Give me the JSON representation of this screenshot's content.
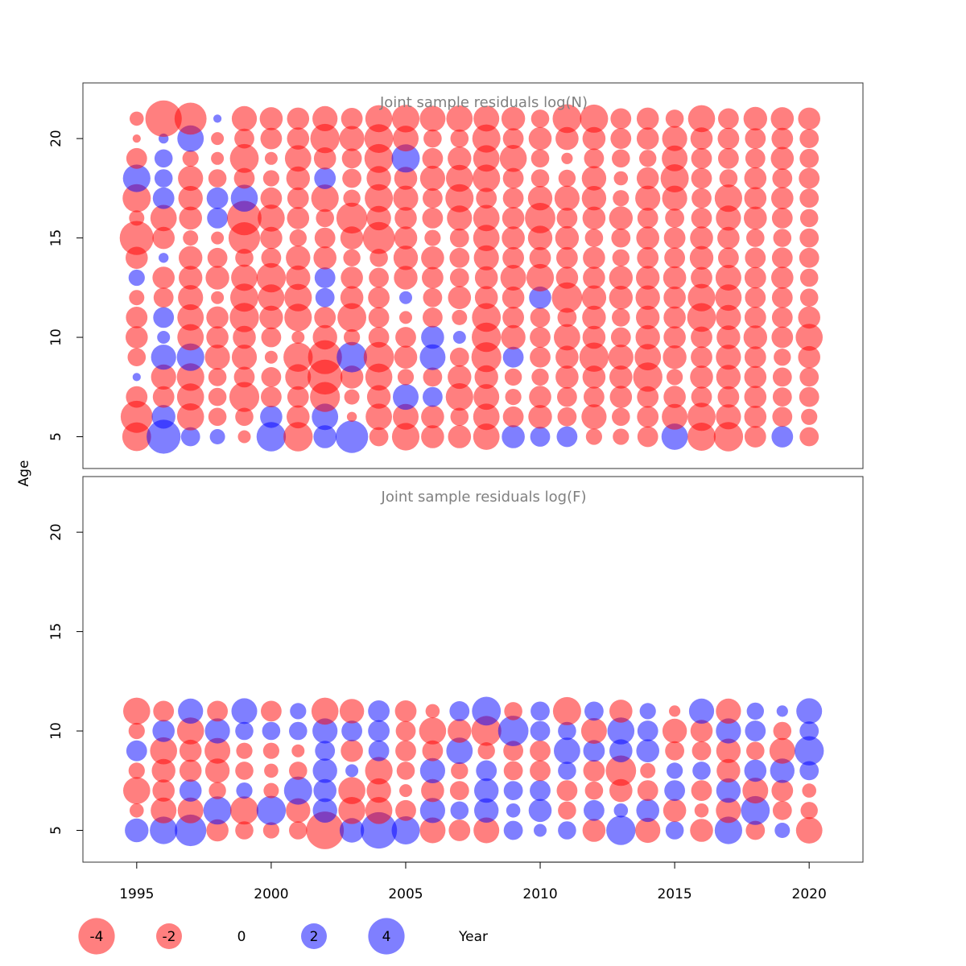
{
  "colors": {
    "negative": "#ff0000",
    "positive": "#0000ff",
    "bubble_opacity": 0.5,
    "title": "#808080"
  },
  "chart_data": [
    {
      "type": "bubble",
      "title": "Joint sample residuals log(N)",
      "ylabel": "Age",
      "xlim": [
        1993,
        2022
      ],
      "ylim": [
        3.4,
        22.8
      ],
      "yticks": [
        "5",
        "10",
        "15",
        "20"
      ],
      "x": [
        1995,
        1996,
        1997,
        1998,
        1999,
        2000,
        2001,
        2002,
        2003,
        2004,
        2005,
        2006,
        2007,
        2008,
        2009,
        2010,
        2011,
        2012,
        2013,
        2014,
        2015,
        2016,
        2017,
        2018,
        2019,
        2020
      ],
      "ages": [
        5,
        6,
        7,
        8,
        9,
        10,
        11,
        12,
        13,
        14,
        15,
        16,
        17,
        18,
        19,
        20,
        21
      ],
      "residuals": [
        [
          -2.5,
          -3.1,
          -1.4,
          0.2,
          -1.0,
          -1.5,
          -1.4,
          -0.7,
          0.8,
          -1.5,
          -3.5,
          -0.7,
          -2.4,
          2.3,
          -1.3,
          -0.2,
          -0.6
        ],
        [
          3.5,
          1.7,
          -1.4,
          -1.9,
          1.9,
          0.5,
          1.3,
          -1.2,
          -1.5,
          0.3,
          -1.5,
          -2.1,
          1.4,
          1.0,
          1.0,
          0.3,
          -4.0
        ],
        [
          1.1,
          -2.2,
          -2.2,
          -2.3,
          2.3,
          -2.1,
          -2.1,
          -1.9,
          -1.7,
          -1.7,
          -0.7,
          -1.6,
          -1.8,
          -1.9,
          -0.8,
          2.1,
          -3.1
        ],
        [
          0.7,
          -1.0,
          -1.0,
          -1.0,
          -1.9,
          -1.5,
          -1.5,
          -0.5,
          -1.7,
          -1.2,
          -0.5,
          1.3,
          1.4,
          -1.0,
          -0.5,
          -0.5,
          0.2
        ],
        [
          -0.5,
          -1.0,
          -2.7,
          -1.3,
          -1.9,
          -1.6,
          -2.6,
          -2.4,
          -2.1,
          -1.0,
          -3.0,
          -3.6,
          2.2,
          -1.3,
          -2.5,
          -1.2,
          -1.9
        ],
        [
          2.6,
          1.5,
          -1.3,
          -1.2,
          -0.5,
          -1.2,
          -1.7,
          -2.1,
          -2.6,
          -1.2,
          -1.5,
          -2.2,
          -1.4,
          -0.8,
          -0.5,
          -1.4,
          -1.6
        ],
        [
          -2.6,
          -1.6,
          -1.4,
          -2.0,
          -2.6,
          -0.5,
          -2.3,
          -2.3,
          -1.8,
          -1.8,
          -0.9,
          -1.5,
          -1.4,
          -1.7,
          -2.1,
          -1.5,
          -1.5
        ],
        [
          1.6,
          2.1,
          -2.7,
          -3.7,
          -3.5,
          -1.8,
          -1.4,
          1.1,
          1.3,
          -1.6,
          -1.3,
          -1.0,
          -2.3,
          1.4,
          -1.5,
          -2.6,
          -1.9
        ],
        [
          3.2,
          -0.3,
          -0.7,
          -1.6,
          2.8,
          -0.8,
          -2.5,
          -1.6,
          -1.5,
          -0.9,
          -1.6,
          -2.9,
          -0.9,
          -1.1,
          -1.2,
          -1.9,
          -1.4
        ],
        [
          -1.1,
          -2.1,
          -1.7,
          -2.2,
          -2.8,
          -1.3,
          -1.3,
          -1.4,
          -1.2,
          -1.0,
          -3.1,
          -1.8,
          -2.4,
          -1.8,
          -2.5,
          -2.5,
          -2.2
        ],
        [
          -2.3,
          -2.0,
          2.0,
          -0.8,
          -1.6,
          -1.3,
          -0.5,
          0.5,
          -1.7,
          -1.8,
          -1.6,
          -1.5,
          -1.9,
          -1.6,
          2.4,
          -2.0,
          -2.3
        ],
        [
          -1.6,
          -1.6,
          1.2,
          -1.1,
          2.0,
          1.6,
          -1.2,
          -1.1,
          -1.4,
          -1.6,
          -0.8,
          -1.3,
          -1.2,
          -1.9,
          -1.3,
          -1.0,
          -2.0
        ],
        [
          -1.6,
          -1.0,
          -2.3,
          -1.7,
          -1.1,
          0.5,
          -0.7,
          -1.6,
          -1.1,
          -1.2,
          -1.1,
          -1.9,
          -2.4,
          -2.2,
          -1.7,
          -1.0,
          -2.1
        ],
        [
          -2.1,
          -2.1,
          -2.0,
          -1.7,
          -2.7,
          -2.6,
          -2.5,
          -1.6,
          -1.6,
          -1.9,
          -2.1,
          -2.1,
          -1.3,
          -2.3,
          -2.1,
          -2.4,
          -2.0
        ],
        [
          1.6,
          -1.3,
          -0.8,
          -0.9,
          1.3,
          -1.8,
          -1.4,
          -1.5,
          -2.0,
          -1.4,
          -1.6,
          -1.5,
          -1.3,
          -1.3,
          -2.2,
          -1.3,
          -1.7
        ],
        [
          1.2,
          -1.7,
          -1.5,
          -0.9,
          -1.3,
          -1.3,
          -1.2,
          1.5,
          -2.3,
          -1.4,
          -1.8,
          -2.8,
          -1.8,
          -1.0,
          -1.0,
          -1.6,
          -1.0
        ],
        [
          1.3,
          -1.1,
          -1.2,
          -1.6,
          -1.6,
          -2.1,
          -1.1,
          -2.8,
          -1.5,
          -1.4,
          -1.7,
          -1.3,
          -1.9,
          -0.9,
          -0.4,
          -1.6,
          -2.5
        ],
        [
          -0.8,
          -1.9,
          -1.3,
          -1.6,
          -2.6,
          -1.6,
          -1.7,
          -1.8,
          -1.5,
          -1.5,
          -1.0,
          -1.6,
          -1.8,
          -1.8,
          -1.2,
          -1.6,
          -2.4
        ],
        [
          -0.8,
          -1.0,
          -1.5,
          -1.6,
          -1.9,
          -1.2,
          -1.0,
          -1.7,
          -1.7,
          -0.9,
          -1.1,
          -1.7,
          -0.8,
          -0.6,
          -1.0,
          -1.3,
          -1.3
        ],
        [
          -1.3,
          -1.4,
          -1.4,
          -2.6,
          -2.1,
          -1.8,
          -1.7,
          -1.8,
          -1.7,
          -1.4,
          -1.6,
          -1.3,
          -1.9,
          -1.5,
          -0.9,
          -1.5,
          -1.5
        ],
        [
          2.1,
          -2.0,
          -1.5,
          -0.8,
          -1.7,
          -1.5,
          -1.5,
          -1.5,
          -1.6,
          -1.3,
          -1.4,
          -1.1,
          -1.9,
          -2.4,
          -2.0,
          -1.9,
          -1.0
        ],
        [
          -2.4,
          -2.4,
          -1.3,
          -1.6,
          -1.4,
          -1.4,
          -2.5,
          -2.3,
          -1.4,
          -1.7,
          -1.6,
          -1.3,
          -1.2,
          -1.3,
          -1.3,
          -1.5,
          -2.2
        ],
        [
          -2.6,
          -1.9,
          -1.4,
          -1.8,
          -1.9,
          -1.7,
          -1.9,
          -2.1,
          -2.0,
          -1.3,
          -1.5,
          -1.9,
          -2.3,
          -1.0,
          -1.3,
          -1.4,
          -1.3
        ],
        [
          -1.4,
          -1.5,
          -1.5,
          -1.5,
          -1.4,
          -1.7,
          -1.4,
          -1.3,
          -1.4,
          -1.3,
          -1.0,
          -1.6,
          -1.5,
          -1.5,
          -1.2,
          -1.3,
          -1.7
        ],
        [
          1.4,
          -1.2,
          -1.1,
          -1.1,
          -0.9,
          -1.4,
          -1.3,
          -1.3,
          -1.5,
          -1.3,
          -1.0,
          -1.3,
          -1.5,
          -1.2,
          -1.6,
          -1.4,
          -1.6
        ],
        [
          -1.1,
          -0.8,
          -1.2,
          -1.1,
          -1.5,
          -2.2,
          -1.5,
          -1.0,
          -1.0,
          -1.2,
          -1.1,
          -1.0,
          -1.1,
          -1.3,
          -1.1,
          -1.1,
          -1.5
        ]
      ]
    },
    {
      "type": "bubble",
      "title": "Joint sample residuals log(F)",
      "xlabel": "Year",
      "xlim": [
        1993,
        2022
      ],
      "ylim": [
        3.4,
        22.8
      ],
      "yticks": [
        "5",
        "10",
        "15",
        "20"
      ],
      "xticks": [
        "1995",
        "2000",
        "2005",
        "2010",
        "2015",
        "2020"
      ],
      "x": [
        1995,
        1996,
        1997,
        1998,
        1999,
        2000,
        2001,
        2002,
        2003,
        2004,
        2005,
        2006,
        2007,
        2008,
        2009,
        2010,
        2011,
        2012,
        2013,
        2014,
        2015,
        2016,
        2017,
        2018,
        2019,
        2020
      ],
      "ages": [
        5,
        6,
        7,
        8,
        9,
        10,
        11
      ],
      "residuals": [
        [
          1.7,
          -0.6,
          -2.2,
          -0.8,
          1.3,
          -0.8,
          -2.2
        ],
        [
          2.3,
          -2.0,
          -1.5,
          -1.7,
          -2.2,
          1.5,
          -1.3
        ],
        [
          3.0,
          -2.0,
          1.5,
          -1.5,
          -1.5,
          -2.2,
          1.9
        ],
        [
          -1.5,
          2.4,
          -0.9,
          -1.8,
          -2.0,
          1.9,
          -1.3
        ],
        [
          -1.0,
          -2.4,
          0.8,
          -1.0,
          -0.8,
          1.0,
          2.0
        ],
        [
          -0.8,
          2.6,
          -0.7,
          -0.6,
          -0.8,
          1.0,
          -1.3
        ],
        [
          -1.0,
          -1.8,
          2.4,
          -1.0,
          -0.5,
          1.0,
          0.8
        ],
        [
          -4.3,
          1.8,
          1.6,
          1.8,
          1.2,
          1.9,
          -2.2
        ],
        [
          1.8,
          -2.2,
          -2.2,
          0.5,
          -1.5,
          1.3,
          -1.8
        ],
        [
          4.0,
          -2.2,
          -1.8,
          -2.3,
          1.3,
          1.4,
          1.4
        ],
        [
          2.4,
          -1.3,
          -0.5,
          -1.0,
          -1.3,
          -1.2,
          -1.4
        ],
        [
          -2.0,
          1.9,
          -1.6,
          1.9,
          -1.3,
          -2.2,
          -0.6
        ],
        [
          -1.4,
          1.0,
          -1.1,
          -0.9,
          2.1,
          -1.7,
          1.2
        ],
        [
          -2.0,
          1.8,
          1.8,
          1.3,
          -0.9,
          -2.7,
          2.5
        ],
        [
          1.1,
          0.6,
          1.1,
          -1.1,
          -1.2,
          2.8,
          -1.0
        ],
        [
          0.5,
          1.6,
          1.3,
          -1.3,
          -1.3,
          1.2,
          1.1
        ],
        [
          1.0,
          -1.0,
          -1.3,
          1.0,
          2.1,
          1.0,
          -2.4
        ],
        [
          -1.6,
          1.3,
          -1.0,
          -1.4,
          1.4,
          -2.0,
          1.1
        ],
        [
          2.6,
          0.6,
          -1.6,
          -2.8,
          1.6,
          2.2,
          -1.6
        ],
        [
          -1.9,
          1.6,
          -1.3,
          -0.7,
          1.6,
          1.3,
          0.8
        ],
        [
          1.0,
          -1.6,
          1.3,
          0.8,
          -1.1,
          -1.8,
          -0.4
        ],
        [
          -1.6,
          -0.6,
          -1.3,
          1.0,
          -1.1,
          -1.5,
          1.9
        ],
        [
          2.3,
          -1.9,
          1.8,
          -1.7,
          -1.8,
          1.9,
          -1.9
        ],
        [
          -1.1,
          2.5,
          -2.0,
          1.5,
          -1.0,
          1.3,
          0.9
        ],
        [
          0.7,
          -1.1,
          -1.4,
          1.8,
          -2.0,
          -1.0,
          0.4
        ],
        [
          -2.1,
          -0.9,
          -0.6,
          1.1,
          2.6,
          1.1,
          2.0
        ]
      ]
    }
  ],
  "legend": {
    "entries": [
      {
        "label": "-4",
        "value": -4
      },
      {
        "label": "-2",
        "value": -2
      },
      {
        "label": "0",
        "value": 0
      },
      {
        "label": "2",
        "value": 2
      },
      {
        "label": "4",
        "value": 4
      }
    ],
    "xlabel": "Year"
  }
}
